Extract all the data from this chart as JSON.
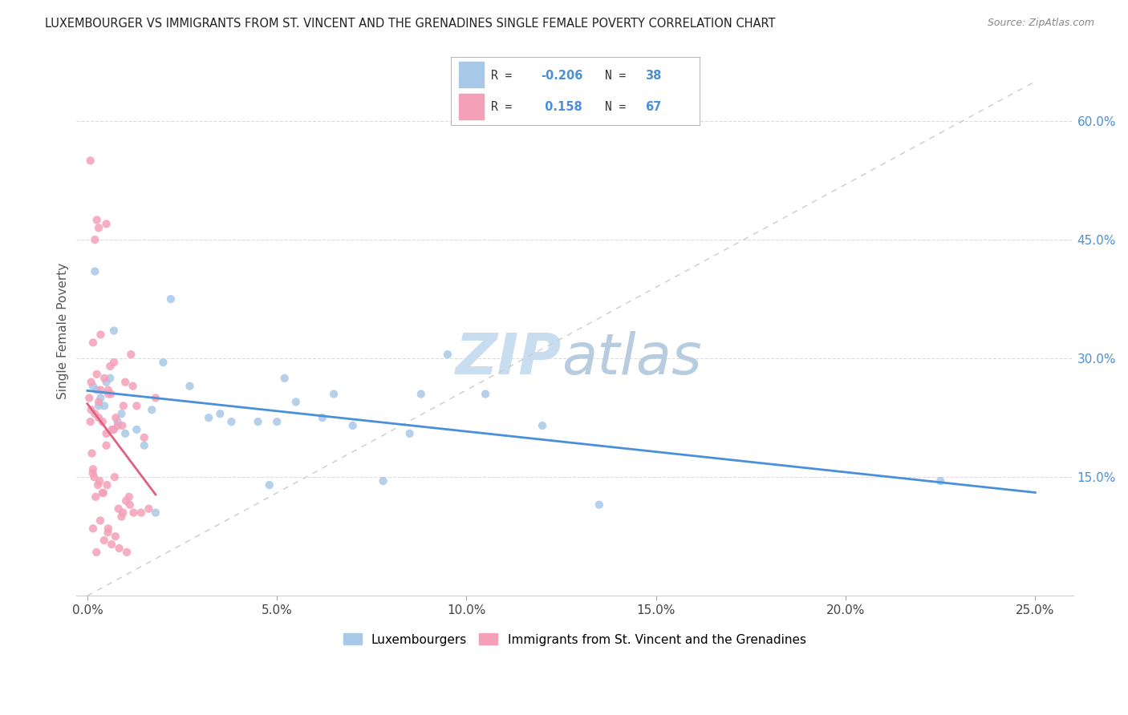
{
  "title": "LUXEMBOURGER VS IMMIGRANTS FROM ST. VINCENT AND THE GRENADINES SINGLE FEMALE POVERTY CORRELATION CHART",
  "source": "Source: ZipAtlas.com",
  "xlabel_vals": [
    0.0,
    5.0,
    10.0,
    15.0,
    20.0,
    25.0
  ],
  "ylabel_vals": [
    15.0,
    30.0,
    45.0,
    60.0
  ],
  "ylabel_label": "Single Female Poverty",
  "watermark_zip": "ZIP",
  "watermark_atlas": "atlas",
  "legend_label1": "Luxembourgers",
  "legend_label2": "Immigrants from St. Vincent and the Grenadines",
  "color1": "#a8c8e8",
  "color2": "#f4a0b8",
  "trendline1_color": "#4a90d9",
  "trendline2_color": "#e06080",
  "watermark_color1": "#c8ddf0",
  "watermark_color2": "#b8cce0",
  "lux_x": [
    0.5,
    2.2,
    0.15,
    0.25,
    0.35,
    0.45,
    0.6,
    0.8,
    0.9,
    1.0,
    1.3,
    1.7,
    2.0,
    2.7,
    3.2,
    3.8,
    4.5,
    5.0,
    5.5,
    6.5,
    7.0,
    7.8,
    8.5,
    9.5,
    10.5,
    12.0,
    13.5,
    22.5,
    3.5,
    4.8,
    5.2,
    6.2,
    8.8,
    0.2,
    0.3,
    0.7,
    1.5,
    1.8
  ],
  "lux_y": [
    27.0,
    37.5,
    26.5,
    26.0,
    25.0,
    24.0,
    27.5,
    22.0,
    23.0,
    20.5,
    21.0,
    23.5,
    29.5,
    26.5,
    22.5,
    22.0,
    22.0,
    22.0,
    24.5,
    25.5,
    21.5,
    14.5,
    20.5,
    30.5,
    25.5,
    21.5,
    11.5,
    14.5,
    23.0,
    14.0,
    27.5,
    22.5,
    25.5,
    41.0,
    24.0,
    33.5,
    19.0,
    10.5
  ],
  "svg_x": [
    0.05,
    0.08,
    0.1,
    0.1,
    0.12,
    0.14,
    0.15,
    0.15,
    0.18,
    0.2,
    0.2,
    0.22,
    0.24,
    0.25,
    0.25,
    0.28,
    0.3,
    0.3,
    0.32,
    0.34,
    0.35,
    0.35,
    0.4,
    0.42,
    0.44,
    0.45,
    0.5,
    0.5,
    0.52,
    0.54,
    0.55,
    0.55,
    0.6,
    0.62,
    0.64,
    0.65,
    0.7,
    0.72,
    0.74,
    0.75,
    0.8,
    0.82,
    0.84,
    0.9,
    0.92,
    0.94,
    0.95,
    1.0,
    1.02,
    1.04,
    1.1,
    1.12,
    1.15,
    1.2,
    1.22,
    1.3,
    1.42,
    1.5,
    1.62,
    1.8,
    0.08,
    0.4,
    0.55,
    0.15,
    0.3,
    0.5,
    0.7
  ],
  "svg_y": [
    25.0,
    22.0,
    27.0,
    23.5,
    18.0,
    15.5,
    32.0,
    8.5,
    15.0,
    45.0,
    23.0,
    12.5,
    5.5,
    28.0,
    47.5,
    14.0,
    46.5,
    24.5,
    14.5,
    9.5,
    26.0,
    33.0,
    22.0,
    13.0,
    7.0,
    27.5,
    20.5,
    47.0,
    14.0,
    8.0,
    26.0,
    25.5,
    29.0,
    25.5,
    6.5,
    21.0,
    29.5,
    15.0,
    7.5,
    22.5,
    21.5,
    11.0,
    6.0,
    10.0,
    21.5,
    10.5,
    24.0,
    27.0,
    12.0,
    5.5,
    12.5,
    11.5,
    30.5,
    26.5,
    10.5,
    24.0,
    10.5,
    20.0,
    11.0,
    25.0,
    55.0,
    13.0,
    8.5,
    16.0,
    22.5,
    19.0,
    21.0
  ]
}
